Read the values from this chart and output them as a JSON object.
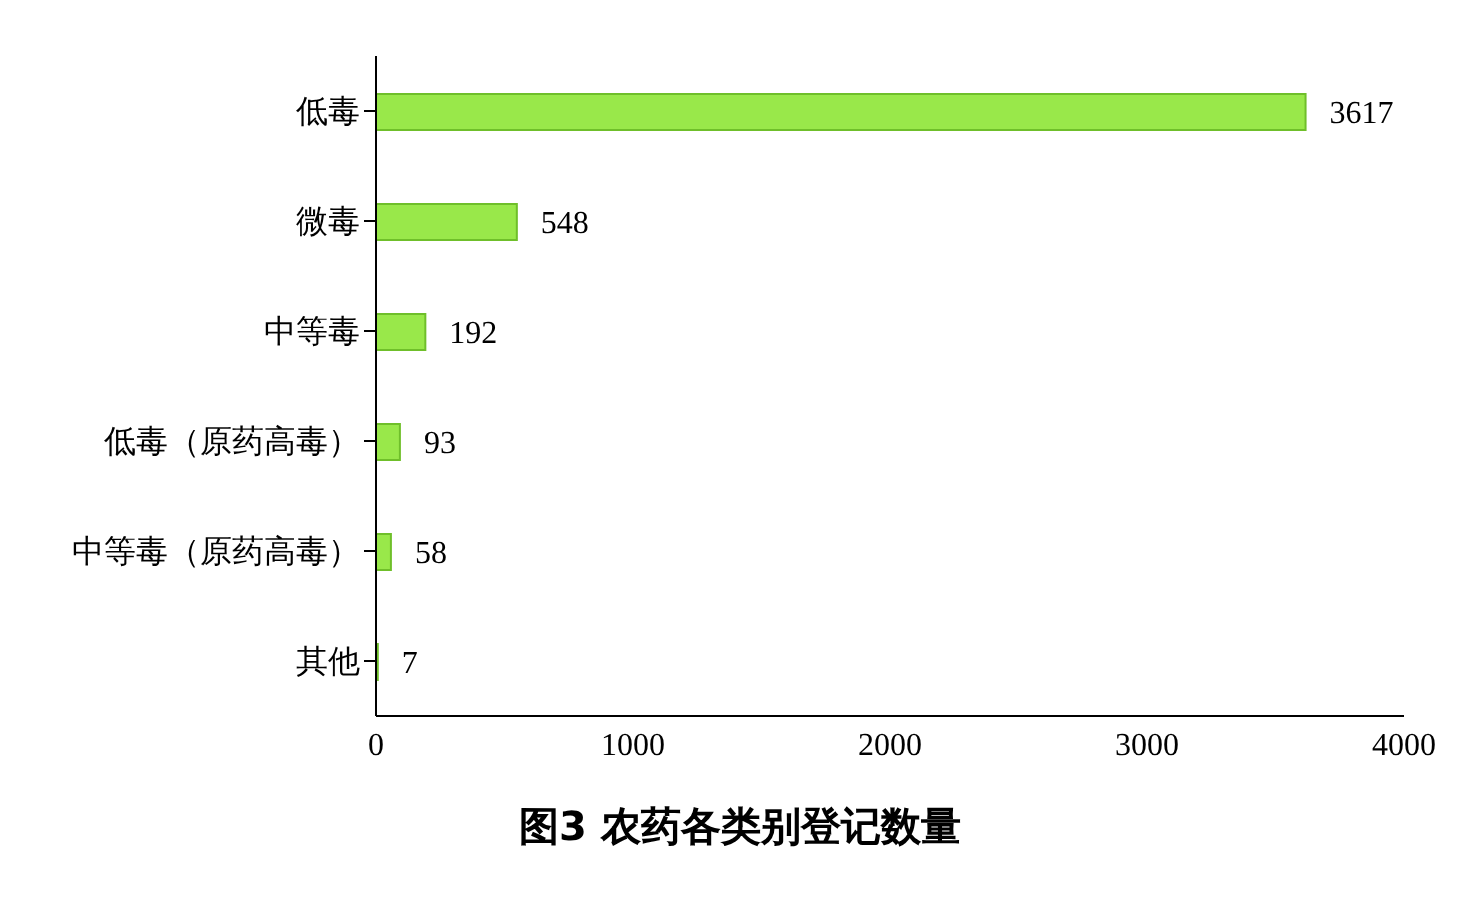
{
  "chart_data": {
    "type": "bar",
    "orientation": "horizontal",
    "title": "图3 农药各类别登记数量",
    "categories": [
      "低毒",
      "微毒",
      "中等毒",
      "低毒（原药高毒）",
      "中等毒（原药高毒）",
      "其他"
    ],
    "values": [
      3617,
      548,
      192,
      93,
      58,
      7
    ],
    "color": "#99e84a",
    "xlim": [
      0,
      4000
    ],
    "xticks": [
      0,
      1000,
      2000,
      3000,
      4000
    ],
    "grid": false,
    "data_labels": true
  }
}
